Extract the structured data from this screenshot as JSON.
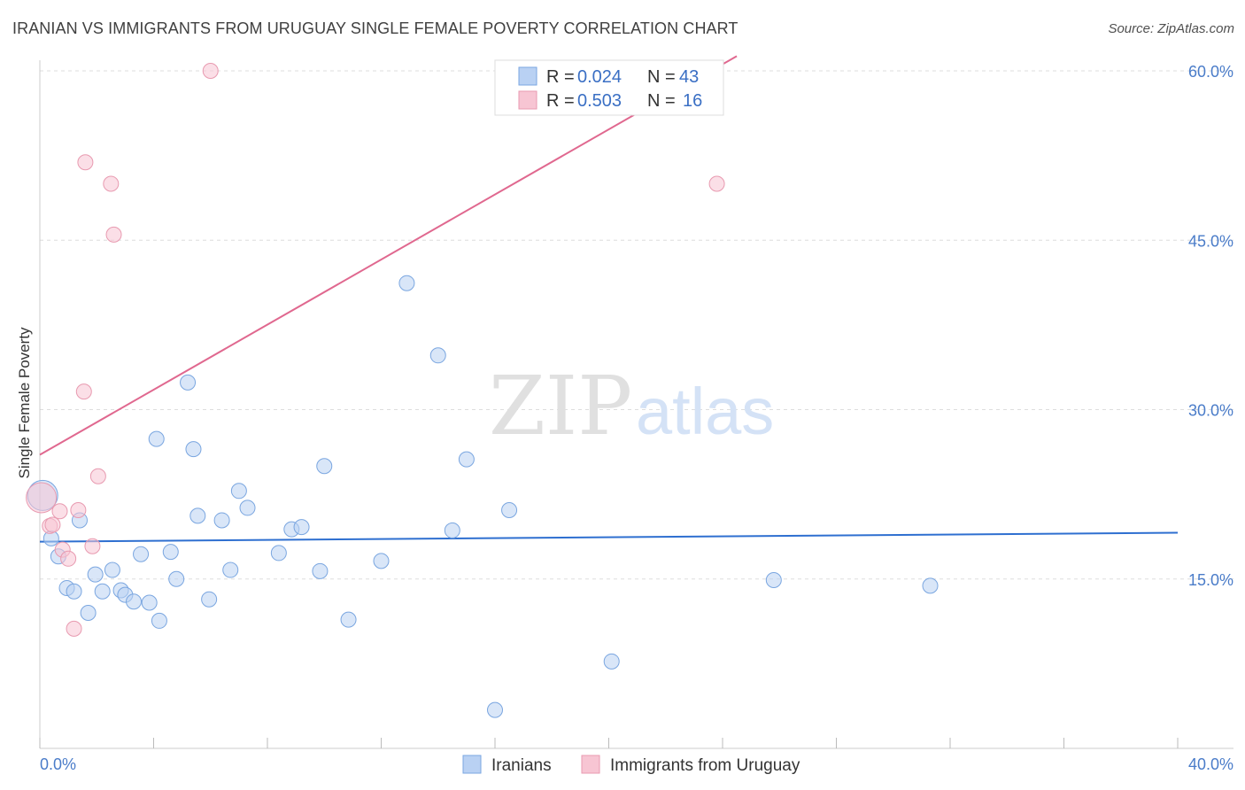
{
  "title": "IRANIAN VS IMMIGRANTS FROM URUGUAY SINGLE FEMALE POVERTY CORRELATION CHART",
  "source": "Source: ZipAtlas.com",
  "watermark": {
    "zip": "ZIP",
    "atlas": "atlas"
  },
  "colors": {
    "blue_fill": "#b9d1f3",
    "blue_stroke": "#7aa6e0",
    "blue_line": "#2e6fd0",
    "pink_fill": "#f7c5d3",
    "pink_stroke": "#e89ab0",
    "pink_line": "#e0688f",
    "grid": "#dddddd",
    "tick_text": "#4a7cc9"
  },
  "legend": {
    "r_label": "R =",
    "n_label": "N =",
    "series": [
      {
        "name": "Iranians",
        "r": "0.024",
        "n": "43"
      },
      {
        "name": "Immigrants from Uruguay",
        "r": "0.503",
        "n": "16"
      }
    ]
  },
  "chart_data": {
    "type": "scatter",
    "title": "IRANIAN VS IMMIGRANTS FROM URUGUAY SINGLE FEMALE POVERTY CORRELATION CHART",
    "xlabel": "",
    "ylabel": "Single Female Poverty",
    "xlim": [
      0,
      40
    ],
    "ylim": [
      0,
      60
    ],
    "x_tick_labels": {
      "left": "0.0%",
      "right": "40.0%"
    },
    "y_ticks": [
      15,
      30,
      45,
      60
    ],
    "y_tick_labels": [
      "15.0%",
      "30.0%",
      "45.0%",
      "60.0%"
    ],
    "grid": true,
    "series": [
      {
        "name": "Iranians",
        "color": "#b9d1f3",
        "trend": {
          "x0": 0,
          "y0": 18.3,
          "x1": 40,
          "y1": 19.1
        },
        "points": [
          [
            0.1,
            22.4,
            "big"
          ],
          [
            0.4,
            18.6
          ],
          [
            0.65,
            17.0
          ],
          [
            0.95,
            14.2
          ],
          [
            1.2,
            13.9
          ],
          [
            1.4,
            20.2
          ],
          [
            1.7,
            12.0
          ],
          [
            1.95,
            15.4
          ],
          [
            2.2,
            13.9
          ],
          [
            2.55,
            15.8
          ],
          [
            2.85,
            14.0
          ],
          [
            3.0,
            13.6
          ],
          [
            3.3,
            13.0
          ],
          [
            3.55,
            17.2
          ],
          [
            3.85,
            12.9
          ],
          [
            4.2,
            11.3
          ],
          [
            4.1,
            27.4
          ],
          [
            4.6,
            17.4
          ],
          [
            4.8,
            15.0
          ],
          [
            5.2,
            32.4
          ],
          [
            5.4,
            26.5
          ],
          [
            5.55,
            20.6
          ],
          [
            5.95,
            13.2
          ],
          [
            6.4,
            20.2
          ],
          [
            6.7,
            15.8
          ],
          [
            7.0,
            22.8
          ],
          [
            7.3,
            21.3
          ],
          [
            8.4,
            17.3
          ],
          [
            8.85,
            19.4
          ],
          [
            9.2,
            19.6
          ],
          [
            9.85,
            15.7
          ],
          [
            10.0,
            25.0
          ],
          [
            10.85,
            11.4
          ],
          [
            12.0,
            16.6
          ],
          [
            12.9,
            41.2
          ],
          [
            14.0,
            34.8
          ],
          [
            14.5,
            19.3
          ],
          [
            15.0,
            25.6
          ],
          [
            16.0,
            3.4
          ],
          [
            16.5,
            21.1
          ],
          [
            20.1,
            7.7
          ],
          [
            25.8,
            14.9
          ],
          [
            31.3,
            14.4
          ]
        ]
      },
      {
        "name": "Immigrants from Uruguay",
        "color": "#f7c5d3",
        "trend": {
          "x0": 0,
          "y0": 26.0,
          "x1": 24.5,
          "y1": 61.3
        },
        "points": [
          [
            0.05,
            22.2,
            "big"
          ],
          [
            0.35,
            19.7
          ],
          [
            0.45,
            19.8
          ],
          [
            0.7,
            21.0
          ],
          [
            0.8,
            17.6
          ],
          [
            1.0,
            16.8
          ],
          [
            1.2,
            10.6
          ],
          [
            1.35,
            21.1
          ],
          [
            1.55,
            31.6
          ],
          [
            1.6,
            51.9
          ],
          [
            1.85,
            17.9
          ],
          [
            2.05,
            24.1
          ],
          [
            2.5,
            50.0
          ],
          [
            2.6,
            45.5
          ],
          [
            6.0,
            60.0
          ],
          [
            23.8,
            50.0
          ]
        ]
      }
    ]
  }
}
